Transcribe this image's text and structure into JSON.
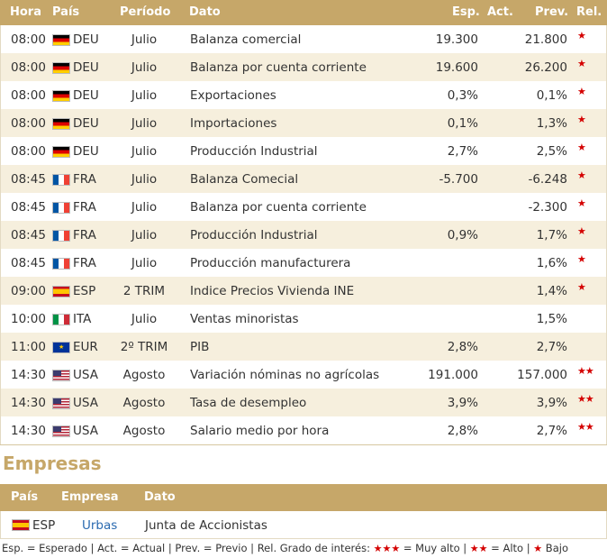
{
  "header": {
    "hora": "Hora",
    "pais": "País",
    "periodo": "Período",
    "dato": "Dato",
    "esp": "Esp.",
    "act": "Act.",
    "prev": "Prev.",
    "rel": "Rel."
  },
  "rows": [
    {
      "hora": "08:00",
      "flag": "deu",
      "pais": "DEU",
      "periodo": "Julio",
      "dato": "Balanza comercial",
      "esp": "19.300",
      "act": "",
      "prev": "21.800",
      "rel": "★"
    },
    {
      "hora": "08:00",
      "flag": "deu",
      "pais": "DEU",
      "periodo": "Julio",
      "dato": "Balanza por cuenta corriente",
      "esp": "19.600",
      "act": "",
      "prev": "26.200",
      "rel": "★"
    },
    {
      "hora": "08:00",
      "flag": "deu",
      "pais": "DEU",
      "periodo": "Julio",
      "dato": "Exportaciones",
      "esp": "0,3%",
      "act": "",
      "prev": "0,1%",
      "rel": "★"
    },
    {
      "hora": "08:00",
      "flag": "deu",
      "pais": "DEU",
      "periodo": "Julio",
      "dato": "Importaciones",
      "esp": "0,1%",
      "act": "",
      "prev": "1,3%",
      "rel": "★"
    },
    {
      "hora": "08:00",
      "flag": "deu",
      "pais": "DEU",
      "periodo": "Julio",
      "dato": "Producción Industrial",
      "esp": "2,7%",
      "act": "",
      "prev": "2,5%",
      "rel": "★"
    },
    {
      "hora": "08:45",
      "flag": "fra",
      "pais": "FRA",
      "periodo": "Julio",
      "dato": "Balanza Comecial",
      "esp": "-5.700",
      "act": "",
      "prev": "-6.248",
      "rel": "★"
    },
    {
      "hora": "08:45",
      "flag": "fra",
      "pais": "FRA",
      "periodo": "Julio",
      "dato": "Balanza por cuenta corriente",
      "esp": "",
      "act": "",
      "prev": "-2.300",
      "rel": "★"
    },
    {
      "hora": "08:45",
      "flag": "fra",
      "pais": "FRA",
      "periodo": "Julio",
      "dato": "Producción Industrial",
      "esp": "0,9%",
      "act": "",
      "prev": "1,7%",
      "rel": "★"
    },
    {
      "hora": "08:45",
      "flag": "fra",
      "pais": "FRA",
      "periodo": "Julio",
      "dato": "Producción manufacturera",
      "esp": "",
      "act": "",
      "prev": "1,6%",
      "rel": "★"
    },
    {
      "hora": "09:00",
      "flag": "esp",
      "pais": "ESP",
      "periodo": "2 TRIM",
      "dato": "Indice Precios Vivienda INE",
      "esp": "",
      "act": "",
      "prev": "1,4%",
      "rel": "★"
    },
    {
      "hora": "10:00",
      "flag": "ita",
      "pais": "ITA",
      "periodo": "Julio",
      "dato": "Ventas minoristas",
      "esp": "",
      "act": "",
      "prev": "1,5%",
      "rel": ""
    },
    {
      "hora": "11:00",
      "flag": "eur",
      "pais": "EUR",
      "periodo": "2º TRIM",
      "dato": "PIB",
      "esp": "2,8%",
      "act": "",
      "prev": "2,7%",
      "rel": ""
    },
    {
      "hora": "14:30",
      "flag": "usa",
      "pais": "USA",
      "periodo": "Agosto",
      "dato": "Variación nóminas no agrícolas",
      "esp": "191.000",
      "act": "",
      "prev": "157.000",
      "rel": "★★"
    },
    {
      "hora": "14:30",
      "flag": "usa",
      "pais": "USA",
      "periodo": "Agosto",
      "dato": "Tasa de desempleo",
      "esp": "3,9%",
      "act": "",
      "prev": "3,9%",
      "rel": "★★"
    },
    {
      "hora": "14:30",
      "flag": "usa",
      "pais": "USA",
      "periodo": "Agosto",
      "dato": "Salario medio por hora",
      "esp": "2,8%",
      "act": "",
      "prev": "2,7%",
      "rel": "★★"
    }
  ],
  "empresas": {
    "title": "Empresas",
    "header": {
      "pais": "País",
      "empresa": "Empresa",
      "dato": "Dato"
    },
    "rows": [
      {
        "flag": "esp",
        "pais": "ESP",
        "empresa": "Urbas",
        "dato": "Junta de Accionistas"
      }
    ]
  },
  "legend": {
    "text1": "Esp. = Esperado | Act. = Actual | Prev. = Previo | Rel. Grado de interés: ",
    "stars_high": "★★★",
    "high": " = Muy alto | ",
    "stars_mid": "★★",
    "mid": " = Alto | ",
    "stars_low": "★",
    "low": " Bajo"
  },
  "colors": {
    "header_bg": "#c6a769",
    "alt_row": "#f6efdd",
    "star": "#d40000",
    "link": "#2a6ab0"
  }
}
